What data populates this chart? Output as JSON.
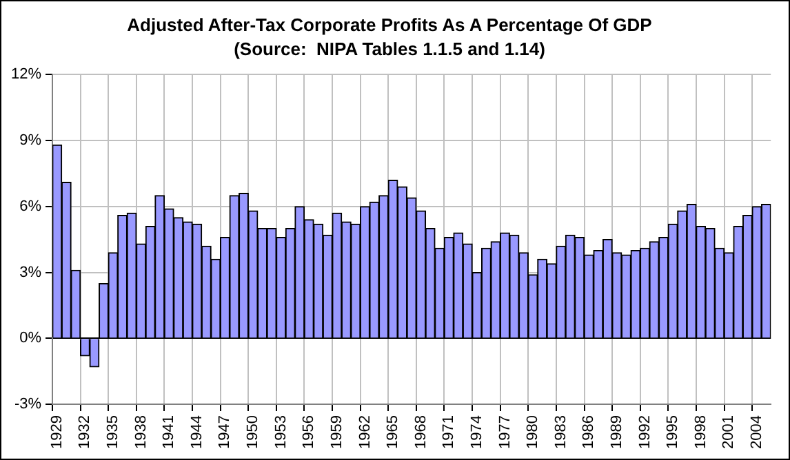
{
  "chart_data": {
    "type": "bar",
    "title": "Adjusted After-Tax Corporate Profits As A Percentage Of GDP",
    "subtitle": "(Source:  NIPA Tables 1.1.5 and 1.14)",
    "categories": [
      "1929",
      null,
      null,
      "1932",
      null,
      null,
      "1935",
      null,
      null,
      "1938",
      null,
      null,
      "1941",
      null,
      null,
      "1944",
      null,
      null,
      "1947",
      null,
      null,
      "1950",
      null,
      null,
      "1953",
      null,
      null,
      "1956",
      null,
      null,
      "1959",
      null,
      null,
      "1962",
      null,
      null,
      "1965",
      null,
      null,
      "1968",
      null,
      null,
      "1971",
      null,
      null,
      "1974",
      null,
      null,
      "1977",
      null,
      null,
      "1980",
      null,
      null,
      "1983",
      null,
      null,
      "1986",
      null,
      null,
      "1989",
      null,
      null,
      "1992",
      null,
      null,
      "1995",
      null,
      null,
      "1998",
      null,
      null,
      "2001",
      null,
      null,
      "2004",
      null
    ],
    "values": [
      8.8,
      7.1,
      3.1,
      -0.8,
      -1.3,
      2.5,
      3.9,
      5.6,
      5.7,
      4.3,
      5.1,
      6.5,
      5.9,
      5.5,
      5.3,
      5.2,
      4.2,
      3.6,
      4.6,
      6.5,
      6.6,
      5.8,
      5.0,
      5.0,
      4.6,
      5.0,
      6.0,
      5.4,
      5.2,
      4.7,
      5.7,
      5.3,
      5.2,
      6.0,
      6.2,
      6.5,
      7.2,
      6.9,
      6.4,
      5.8,
      5.0,
      4.1,
      4.6,
      4.8,
      4.3,
      3.0,
      4.1,
      4.4,
      4.8,
      4.7,
      3.9,
      2.9,
      3.6,
      3.4,
      4.2,
      4.7,
      4.6,
      3.8,
      4.0,
      4.5,
      3.9,
      3.8,
      4.0,
      4.1,
      4.4,
      4.6,
      5.2,
      5.8,
      6.1,
      5.1,
      5.0,
      4.1,
      3.9,
      5.1,
      5.6,
      6.0,
      6.1
    ],
    "color": "#9999ff",
    "ylim": [
      -3,
      12
    ],
    "yticks": [
      {
        "value": -3,
        "label": "-3%"
      },
      {
        "value": 0,
        "label": "0%"
      },
      {
        "value": 3,
        "label": "3%"
      },
      {
        "value": 6,
        "label": "6%"
      },
      {
        "value": 9,
        "label": "9%"
      },
      {
        "value": 12,
        "label": "12%"
      }
    ],
    "grid": true
  }
}
